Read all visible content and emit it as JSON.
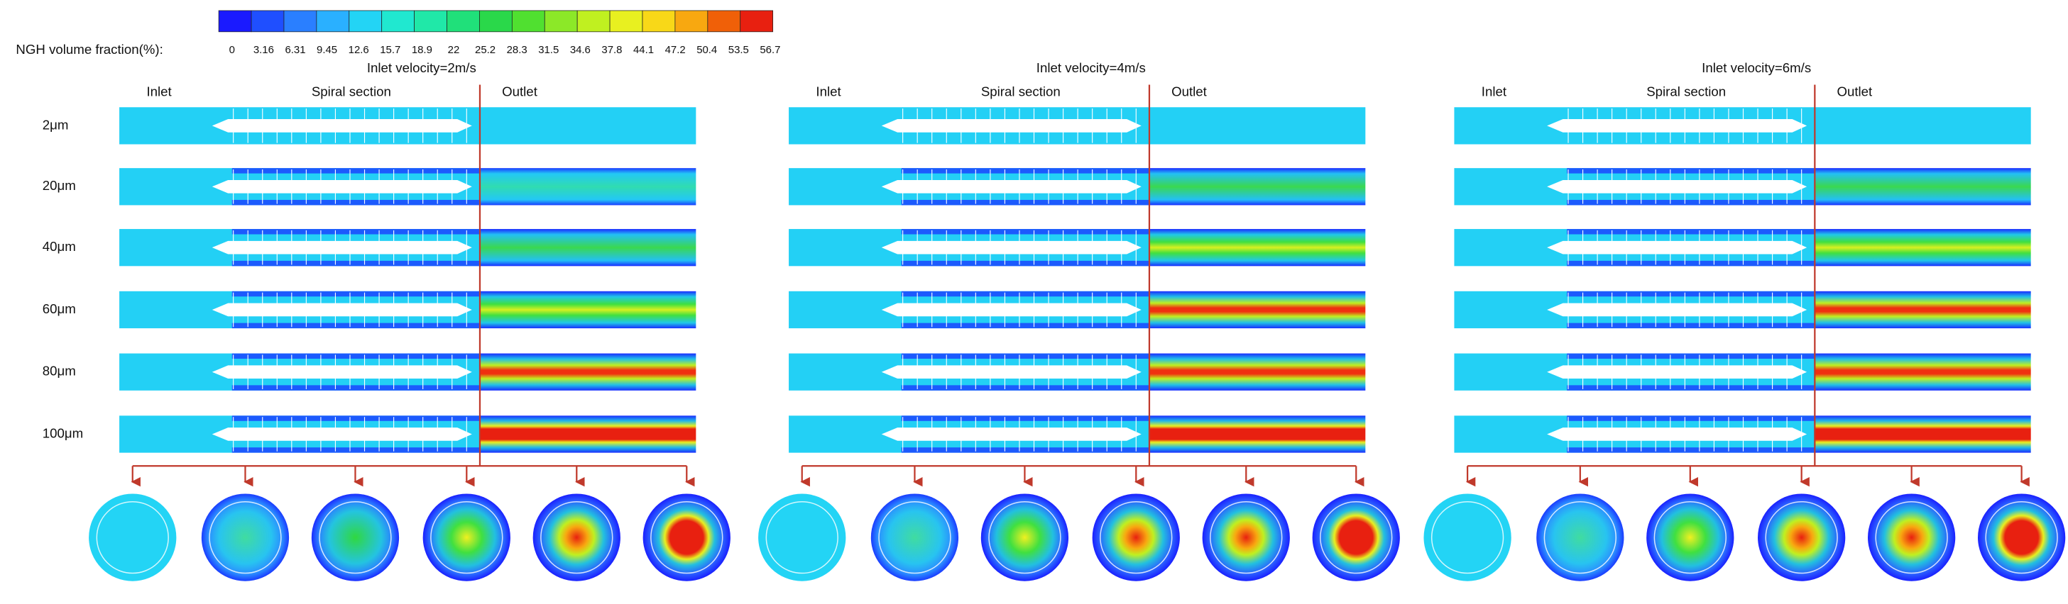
{
  "legend": {
    "label": "NGH volume fraction(%):",
    "ticks": [
      0,
      3.16,
      6.31,
      9.45,
      12.6,
      15.7,
      18.9,
      22,
      25.2,
      28.3,
      31.5,
      34.6,
      37.8,
      44.1,
      47.2,
      50.4,
      53.5,
      56.7
    ],
    "colors": [
      "#1a1aff",
      "#1f4fff",
      "#2a7fff",
      "#2ab0ff",
      "#23d4f5",
      "#20e8d0",
      "#20e8a8",
      "#20e07a",
      "#2ad84a",
      "#50e030",
      "#8ce828",
      "#c0f020",
      "#e8f020",
      "#f8d818",
      "#f8a810",
      "#f06008",
      "#e82010"
    ]
  },
  "panels": [
    {
      "title": "Inlet velocity=2m/s",
      "sections": [
        "Inlet",
        "Spiral section",
        "Outlet"
      ]
    },
    {
      "title": "Inlet velocity=4m/s",
      "sections": [
        "Inlet",
        "Spiral section",
        "Outlet"
      ]
    },
    {
      "title": "Inlet velocity=6m/s",
      "sections": [
        "Inlet",
        "Spiral section",
        "Outlet"
      ]
    }
  ],
  "row_labels": [
    "2μm",
    "20μm",
    "40μm",
    "60μm",
    "80μm",
    "100μm"
  ]
}
